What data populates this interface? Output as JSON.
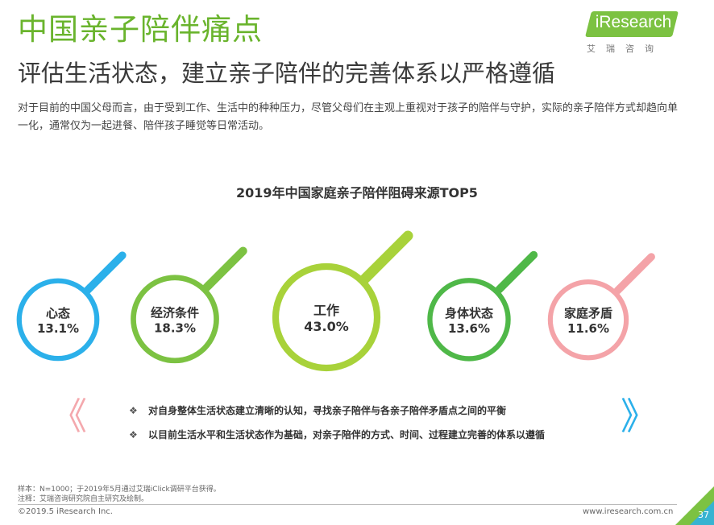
{
  "header": {
    "title": "中国亲子陪伴痛点",
    "subtitle": "评估生活状态，建立亲子陪伴的完善体系以严格遵循",
    "description": "对于目前的中国父母而言，由于受到工作、生活中的种种压力，尽管父母们在主观上重视对于孩子的陪伴与守护，实际的亲子陪伴方式却趋向单一化，通常仅为一起进餐、陪伴孩子睡觉等日常活动。"
  },
  "logo": {
    "text": "iResearch",
    "sub": "艾瑞咨询"
  },
  "chart_data": {
    "type": "bubble",
    "title": "2019年中国家庭亲子陪伴阻碍来源TOP5",
    "items": [
      {
        "label": "心态",
        "value": 13.1,
        "display": "13.1%",
        "color": "#2bb0ea"
      },
      {
        "label": "经济条件",
        "value": 18.3,
        "display": "18.3%",
        "color": "#7cc242"
      },
      {
        "label": "工作",
        "value": 43.0,
        "display": "43.0%",
        "color": "#a8d23a"
      },
      {
        "label": "身体状态",
        "value": 13.6,
        "display": "13.6%",
        "color": "#4fb848"
      },
      {
        "label": "家庭矛盾",
        "value": 11.6,
        "display": "11.6%",
        "color": "#f4a3a8"
      }
    ]
  },
  "bullets": [
    "对自身整体生活状态建立清晰的认知，寻找亲子陪伴与各亲子陪伴矛盾点之间的平衡",
    "以目前生活水平和生活状态作为基础，对亲子陪伴的方式、时间、过程建立完善的体系以遵循"
  ],
  "decor": {
    "left_chevron": "《",
    "right_chevron": "》",
    "bullet_glyph": "❖"
  },
  "footer": {
    "sample": "样本：N=1000；于2019年5月通过艾瑞iClick调研平台获得。",
    "note": "注释：艾瑞咨询研究院自主研究及绘制。",
    "copyright": "©2019.5 iResearch Inc.",
    "website": "www.iresearch.com.cn",
    "page": "37"
  }
}
